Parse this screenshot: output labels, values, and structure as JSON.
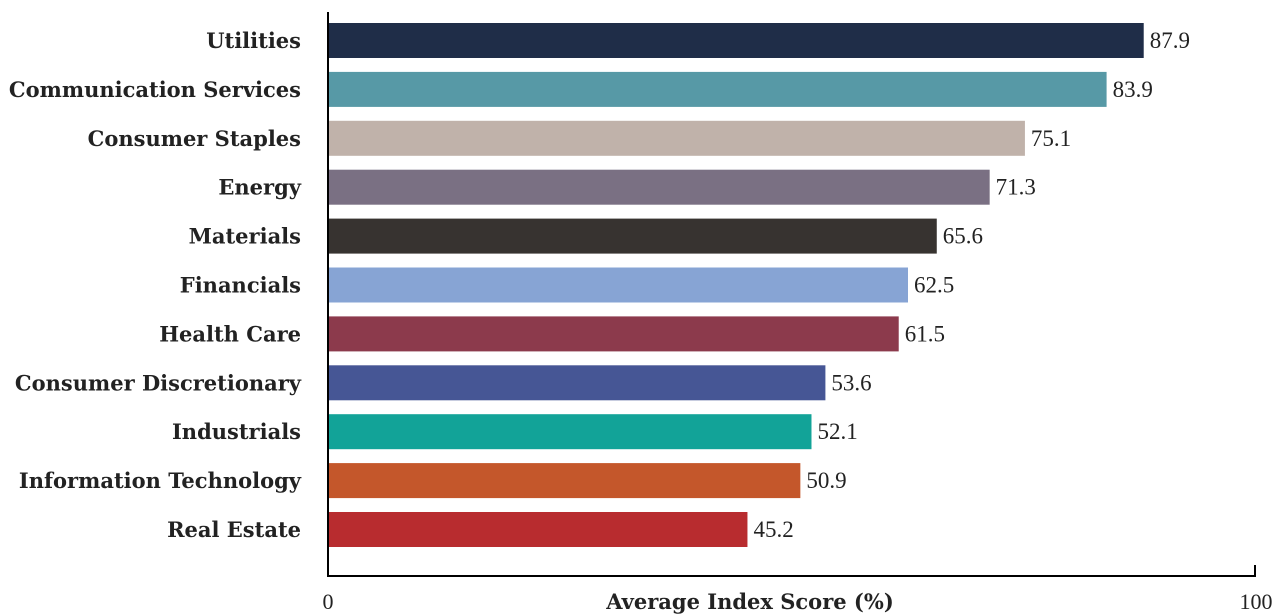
{
  "chart_data": {
    "type": "bar",
    "orientation": "horizontal",
    "title": "",
    "xlabel": "Average Index Score (%)",
    "ylabel": "",
    "xlim": [
      0,
      100
    ],
    "xticks": [
      "0",
      "100"
    ],
    "grid": false,
    "categories": [
      "Utilities",
      "Communication Services",
      "Consumer Staples",
      "Energy",
      "Materials",
      "Financials",
      "Health Care",
      "Consumer Discretionary",
      "Industrials",
      "Information Technology",
      "Real Estate"
    ],
    "values": [
      87.9,
      83.9,
      75.1,
      71.3,
      65.6,
      62.5,
      61.5,
      53.6,
      52.1,
      50.9,
      45.2
    ],
    "value_labels": [
      "87.9",
      "83.9",
      "75.1",
      "71.3",
      "65.6",
      "62.5",
      "61.5",
      "53.6",
      "52.1",
      "50.9",
      "45.2"
    ],
    "colors": [
      "#1f2d48",
      "#5799a6",
      "#c0b2aa",
      "#7a7083",
      "#373330",
      "#87a4d4",
      "#8c3a4c",
      "#465695",
      "#12a398",
      "#c4572b",
      "#b82c2f"
    ]
  }
}
